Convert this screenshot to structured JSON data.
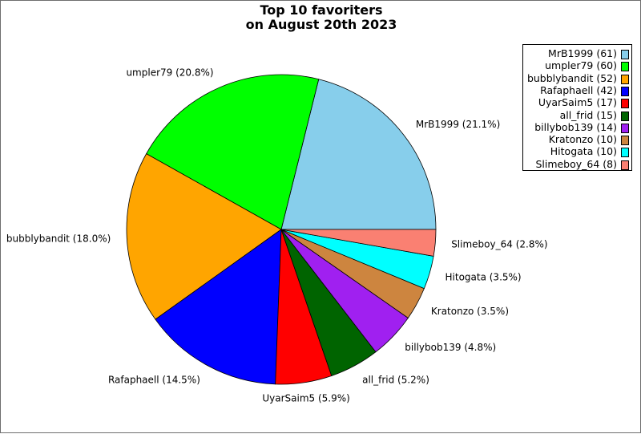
{
  "chart_data": {
    "type": "pie",
    "title_lines": [
      "Top 10 favoriters",
      "on August 20th 2023"
    ],
    "slices": [
      {
        "name": "MrB1999",
        "value": 61,
        "legend": "MrB1999 (61)",
        "label": "MrB1999 (21.1%)",
        "color": "#87ceeb"
      },
      {
        "name": "umpler79",
        "value": 60,
        "legend": "umpler79 (60)",
        "label": "umpler79 (20.8%)",
        "color": "#00ff00"
      },
      {
        "name": "bubblybandit",
        "value": 52,
        "legend": "bubblybandit (52)",
        "label": "bubblybandit (18.0%)",
        "color": "#ffa500"
      },
      {
        "name": "Rafaphaell",
        "value": 42,
        "legend": "Rafaphaell (42)",
        "label": "Rafaphaell (14.5%)",
        "color": "#0000ff"
      },
      {
        "name": "UyarSaim5",
        "value": 17,
        "legend": "UyarSaim5 (17)",
        "label": "UyarSaim5 (5.9%)",
        "color": "#ff0000"
      },
      {
        "name": "all_frid",
        "value": 15,
        "legend": "all_frid (15)",
        "label": "all_frid (5.2%)",
        "color": "#006400"
      },
      {
        "name": "billybob139",
        "value": 14,
        "legend": "billybob139 (14)",
        "label": "billybob139 (4.8%)",
        "color": "#a020f0"
      },
      {
        "name": "Kratonzo",
        "value": 10,
        "legend": "Kratonzo (10)",
        "label": "Kratonzo (3.5%)",
        "color": "#cd853f"
      },
      {
        "name": "Hitogata",
        "value": 10,
        "legend": "Hitogata (10)",
        "label": "Hitogata (3.5%)",
        "color": "#00ffff"
      },
      {
        "name": "Slimeboy_64",
        "value": 8,
        "legend": "Slimeboy_64 (8)",
        "label": "Slimeboy_64 (2.8%)",
        "color": "#fa8072"
      }
    ],
    "start_angle": "right, counterclockwise",
    "legend_placement": "top-right"
  }
}
